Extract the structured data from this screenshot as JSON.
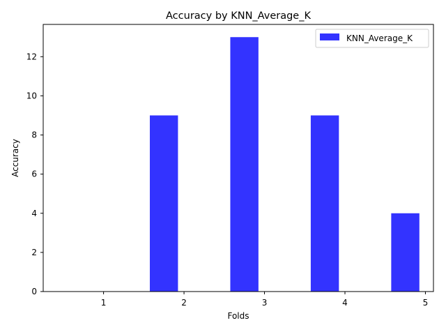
{
  "chart_data": {
    "type": "bar",
    "title": "Accuracy by KNN_Average_K",
    "xlabel": "Folds",
    "ylabel": "Accuracy",
    "x_ticks": [
      1,
      2,
      3,
      4,
      5
    ],
    "y_ticks": [
      0,
      2,
      4,
      6,
      8,
      10,
      12
    ],
    "xlim": [
      0.25,
      5.1
    ],
    "ylim": [
      0,
      13.65
    ],
    "grid": false,
    "legend_position": "top-right",
    "series": [
      {
        "name": "KNN_Average_K",
        "color": "#3333ff",
        "bar_width": 0.35,
        "points": [
          {
            "x": 1.75,
            "value": 9
          },
          {
            "x": 2.75,
            "value": 13
          },
          {
            "x": 3.75,
            "value": 9
          },
          {
            "x": 4.75,
            "value": 4
          }
        ]
      }
    ]
  }
}
